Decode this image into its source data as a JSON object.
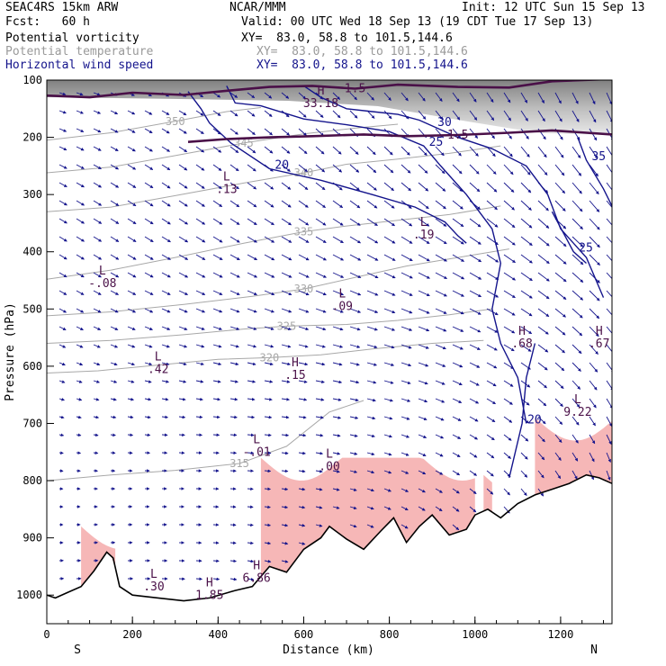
{
  "header": {
    "model": "SEAC4RS 15km ARW",
    "forecast": "Fcst:   60 h",
    "org": "NCAR/MMM",
    "init": "Init: 12 UTC Sun 15 Sep 13",
    "valid": "Valid: 00 UTC Wed 18 Sep 13 (19 CDT Tue 17 Sep 13)",
    "fields": [
      {
        "name": "Potential vorticity",
        "xy": "XY=  83.0, 58.8 to 101.5,144.6",
        "color": "#000000"
      },
      {
        "name": "Potential temperature",
        "xy": "XY=  83.0, 58.8 to 101.5,144.6",
        "color": "#9a9a9a"
      },
      {
        "name": "Horizontal wind speed",
        "xy": "XY=  83.0, 58.8 to 101.5,144.6",
        "color": "#14148c"
      }
    ]
  },
  "chart_data": {
    "type": "cross-section",
    "xlabel": "Distance (km)",
    "ylabel": "Pressure (hPa)",
    "xlim": [
      0,
      1320
    ],
    "ylim": [
      1050,
      100
    ],
    "x_ticks": [
      0,
      200,
      400,
      600,
      800,
      1000,
      1200
    ],
    "y_ticks": [
      100,
      200,
      300,
      400,
      500,
      600,
      700,
      800,
      900,
      1000
    ],
    "x_end_labels": [
      "S",
      "N"
    ],
    "colors": {
      "pv": "#4a1048",
      "theta": "#a8a8a8",
      "wind": "#14148c",
      "pv_fill": "#f6b7b7",
      "terrain": "#000000"
    },
    "terrain": [
      [
        0,
        1000
      ],
      [
        20,
        1005
      ],
      [
        50,
        995
      ],
      [
        80,
        985
      ],
      [
        110,
        958
      ],
      [
        140,
        925
      ],
      [
        155,
        935
      ],
      [
        170,
        985
      ],
      [
        200,
        1000
      ],
      [
        260,
        1005
      ],
      [
        320,
        1010
      ],
      [
        380,
        1005
      ],
      [
        440,
        992
      ],
      [
        480,
        985
      ],
      [
        520,
        950
      ],
      [
        560,
        960
      ],
      [
        600,
        920
      ],
      [
        640,
        900
      ],
      [
        660,
        880
      ],
      [
        700,
        902
      ],
      [
        740,
        920
      ],
      [
        780,
        888
      ],
      [
        810,
        865
      ],
      [
        840,
        908
      ],
      [
        870,
        880
      ],
      [
        900,
        860
      ],
      [
        940,
        895
      ],
      [
        980,
        885
      ],
      [
        1000,
        860
      ],
      [
        1030,
        850
      ],
      [
        1060,
        865
      ],
      [
        1100,
        840
      ],
      [
        1140,
        825
      ],
      [
        1180,
        815
      ],
      [
        1220,
        805
      ],
      [
        1260,
        790
      ],
      [
        1290,
        795
      ],
      [
        1320,
        805
      ]
    ],
    "pv_contours": [
      {
        "label": "1.5",
        "points": [
          [
            0,
            127
          ],
          [
            100,
            130
          ],
          [
            200,
            122
          ],
          [
            320,
            126
          ],
          [
            430,
            118
          ],
          [
            520,
            112
          ],
          [
            620,
            110
          ],
          [
            720,
            115
          ],
          [
            820,
            108
          ],
          [
            960,
            112
          ],
          [
            1080,
            113
          ],
          [
            1180,
            102
          ],
          [
            1320,
            98
          ]
        ]
      },
      {
        "label": "1.5",
        "points": [
          [
            330,
            208
          ],
          [
            420,
            203
          ],
          [
            520,
            200
          ],
          [
            620,
            198
          ],
          [
            740,
            195
          ],
          [
            840,
            198
          ],
          [
            960,
            196
          ],
          [
            1080,
            192
          ],
          [
            1180,
            188
          ],
          [
            1260,
            192
          ],
          [
            1320,
            195
          ]
        ]
      }
    ],
    "theta_contours": [
      {
        "label": "315",
        "points": [
          [
            0,
            800
          ],
          [
            150,
            790
          ],
          [
            300,
            782
          ],
          [
            450,
            770
          ],
          [
            560,
            740
          ],
          [
            660,
            680
          ],
          [
            740,
            660
          ]
        ]
      },
      {
        "label": "320",
        "points": [
          [
            0,
            612
          ],
          [
            120,
            608
          ],
          [
            260,
            598
          ],
          [
            400,
            588
          ],
          [
            520,
            585
          ],
          [
            640,
            580
          ],
          [
            760,
            570
          ],
          [
            900,
            560
          ],
          [
            1020,
            555
          ]
        ]
      },
      {
        "label": "325",
        "points": [
          [
            0,
            560
          ],
          [
            150,
            555
          ],
          [
            320,
            545
          ],
          [
            460,
            535
          ],
          [
            560,
            530
          ],
          [
            700,
            527
          ],
          [
            820,
            520
          ],
          [
            940,
            510
          ],
          [
            1040,
            500
          ]
        ]
      },
      {
        "label": "330",
        "points": [
          [
            0,
            512
          ],
          [
            150,
            505
          ],
          [
            320,
            492
          ],
          [
            480,
            478
          ],
          [
            600,
            465
          ],
          [
            720,
            445
          ],
          [
            840,
            425
          ],
          [
            960,
            410
          ],
          [
            1080,
            395
          ]
        ]
      },
      {
        "label": "335",
        "points": [
          [
            0,
            448
          ],
          [
            150,
            432
          ],
          [
            300,
            410
          ],
          [
            460,
            385
          ],
          [
            600,
            365
          ],
          [
            700,
            355
          ],
          [
            820,
            345
          ],
          [
            940,
            335
          ],
          [
            1060,
            320
          ]
        ]
      },
      {
        "label": "340",
        "points": [
          [
            0,
            330
          ],
          [
            150,
            322
          ],
          [
            300,
            302
          ],
          [
            460,
            280
          ],
          [
            600,
            262
          ],
          [
            700,
            247
          ],
          [
            820,
            238
          ],
          [
            940,
            228
          ],
          [
            1060,
            215
          ]
        ]
      },
      {
        "label": "345",
        "points": [
          [
            0,
            262
          ],
          [
            150,
            252
          ],
          [
            300,
            232
          ],
          [
            460,
            210
          ],
          [
            600,
            194
          ],
          [
            720,
            184
          ],
          [
            820,
            177
          ]
        ]
      },
      {
        "label": "350",
        "points": [
          [
            0,
            205
          ],
          [
            150,
            192
          ],
          [
            300,
            172
          ],
          [
            420,
            155
          ],
          [
            500,
            148
          ]
        ]
      }
    ],
    "wind_contours": [
      {
        "label": "20",
        "points": [
          [
            330,
            120
          ],
          [
            360,
            150
          ],
          [
            380,
            175
          ],
          [
            430,
            210
          ],
          [
            520,
            255
          ],
          [
            640,
            275
          ],
          [
            760,
            300
          ],
          [
            860,
            322
          ],
          [
            930,
            348
          ],
          [
            960,
            372
          ],
          [
            980,
            385
          ]
        ]
      },
      {
        "label": "20",
        "points": [
          [
            1080,
            795
          ],
          [
            1110,
            700
          ],
          [
            1120,
            620
          ],
          [
            1140,
            560
          ]
        ]
      },
      {
        "label": "25",
        "points": [
          [
            420,
            110
          ],
          [
            440,
            140
          ],
          [
            500,
            145
          ],
          [
            600,
            168
          ],
          [
            700,
            178
          ],
          [
            800,
            190
          ],
          [
            880,
            215
          ],
          [
            920,
            250
          ],
          [
            980,
            300
          ],
          [
            1040,
            360
          ],
          [
            1060,
            420
          ],
          [
            1040,
            500
          ],
          [
            1060,
            560
          ],
          [
            1100,
            620
          ],
          [
            1120,
            700
          ]
        ]
      },
      {
        "label": "25",
        "points": [
          [
            1180,
            330
          ],
          [
            1230,
            400
          ],
          [
            1260,
            420
          ]
        ]
      },
      {
        "label": "30",
        "points": [
          [
            600,
            110
          ],
          [
            640,
            130
          ],
          [
            700,
            150
          ],
          [
            760,
            155
          ],
          [
            820,
            160
          ],
          [
            870,
            170
          ],
          [
            900,
            180
          ],
          [
            960,
            200
          ],
          [
            1040,
            220
          ],
          [
            1120,
            250
          ],
          [
            1170,
            300
          ],
          [
            1200,
            360
          ],
          [
            1260,
            410
          ],
          [
            1300,
            480
          ]
        ]
      },
      {
        "label": "35",
        "points": [
          [
            1240,
            200
          ],
          [
            1260,
            240
          ],
          [
            1300,
            290
          ],
          [
            1320,
            320
          ]
        ]
      }
    ],
    "annotations": [
      {
        "type": "H",
        "value": "33.18",
        "x": 640,
        "y": 125
      },
      {
        "type": "L",
        "value": ".13",
        "x": 420,
        "y": 275
      },
      {
        "type": "L",
        "value": ".19",
        "x": 880,
        "y": 355
      },
      {
        "type": "L",
        "value": "-.08",
        "x": 130,
        "y": 440
      },
      {
        "type": "L",
        "value": ".09",
        "x": 690,
        "y": 480
      },
      {
        "type": "H",
        "value": ".68",
        "x": 1110,
        "y": 545
      },
      {
        "type": "H",
        "value": ".67",
        "x": 1290,
        "y": 545
      },
      {
        "type": "L",
        "value": ".42",
        "x": 260,
        "y": 590
      },
      {
        "type": "H",
        "value": ".15",
        "x": 580,
        "y": 600
      },
      {
        "type": "L",
        "value": "9.22",
        "x": 1240,
        "y": 665
      },
      {
        "type": "L",
        "value": "-.01",
        "x": 490,
        "y": 735
      },
      {
        "type": "L",
        "value": ".00",
        "x": 660,
        "y": 760
      },
      {
        "type": "L",
        "value": ".30",
        "x": 250,
        "y": 970
      },
      {
        "type": "H",
        "value": "1.85",
        "x": 380,
        "y": 985
      },
      {
        "type": "H",
        "value": "6.86",
        "x": 490,
        "y": 955
      }
    ]
  }
}
